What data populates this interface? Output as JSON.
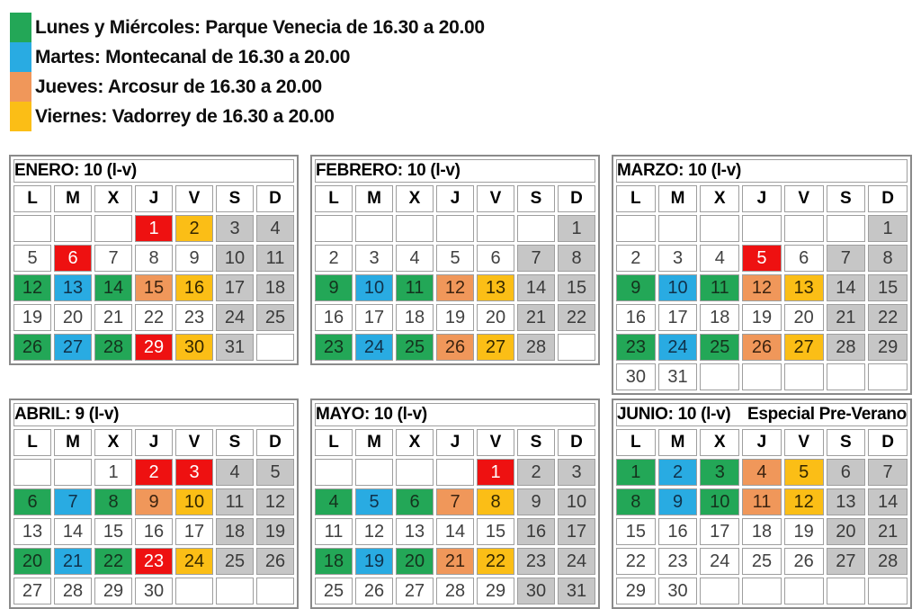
{
  "colors": {
    "green": "#23A757",
    "blue": "#29ABE2",
    "orange": "#F0975A",
    "yellow": "#FBBE16",
    "red": "#EE1111",
    "weekend_gray": "#C6C6C6"
  },
  "legend": {
    "items": [
      {
        "color_name": "green",
        "label": "Lunes y Miércoles: Parque Venecia de 16.30 a 20.00"
      },
      {
        "color_name": "blue",
        "label": "Martes: Montecanal de 16.30 a 20.00"
      },
      {
        "color_name": "orange",
        "label": "Jueves: Arcosur de 16.30 a 20.00"
      },
      {
        "color_name": "yellow",
        "label": "Viernes: Vadorrey de 16.30 a 20.00"
      }
    ]
  },
  "weekday_headers": [
    "L",
    "M",
    "X",
    "J",
    "V",
    "S",
    "D"
  ],
  "months": [
    {
      "id": "enero",
      "title": "ENERO: 10 (l-v)",
      "note": "",
      "weeks": [
        [
          {
            "d": "",
            "c": "empty"
          },
          {
            "d": "",
            "c": "empty"
          },
          {
            "d": "",
            "c": "empty"
          },
          {
            "d": 1,
            "c": "red"
          },
          {
            "d": 2,
            "c": "yellow"
          },
          {
            "d": 3,
            "c": "gray"
          },
          {
            "d": 4,
            "c": "gray"
          }
        ],
        [
          {
            "d": 5,
            "c": "white"
          },
          {
            "d": 6,
            "c": "red"
          },
          {
            "d": 7,
            "c": "white"
          },
          {
            "d": 8,
            "c": "white"
          },
          {
            "d": 9,
            "c": "white"
          },
          {
            "d": 10,
            "c": "gray"
          },
          {
            "d": 11,
            "c": "gray"
          }
        ],
        [
          {
            "d": 12,
            "c": "green"
          },
          {
            "d": 13,
            "c": "blue"
          },
          {
            "d": 14,
            "c": "green"
          },
          {
            "d": 15,
            "c": "orange"
          },
          {
            "d": 16,
            "c": "yellow"
          },
          {
            "d": 17,
            "c": "gray"
          },
          {
            "d": 18,
            "c": "gray"
          }
        ],
        [
          {
            "d": 19,
            "c": "white"
          },
          {
            "d": 20,
            "c": "white"
          },
          {
            "d": 21,
            "c": "white"
          },
          {
            "d": 22,
            "c": "white"
          },
          {
            "d": 23,
            "c": "white"
          },
          {
            "d": 24,
            "c": "gray"
          },
          {
            "d": 25,
            "c": "gray"
          }
        ],
        [
          {
            "d": 26,
            "c": "green"
          },
          {
            "d": 27,
            "c": "blue"
          },
          {
            "d": 28,
            "c": "green"
          },
          {
            "d": 29,
            "c": "red"
          },
          {
            "d": 30,
            "c": "yellow"
          },
          {
            "d": 31,
            "c": "gray"
          },
          {
            "d": "",
            "c": "empty"
          }
        ]
      ]
    },
    {
      "id": "febrero",
      "title": "FEBRERO: 10 (l-v)",
      "note": "",
      "weeks": [
        [
          {
            "d": "",
            "c": "empty"
          },
          {
            "d": "",
            "c": "empty"
          },
          {
            "d": "",
            "c": "empty"
          },
          {
            "d": "",
            "c": "empty"
          },
          {
            "d": "",
            "c": "empty"
          },
          {
            "d": "",
            "c": "empty"
          },
          {
            "d": 1,
            "c": "gray"
          }
        ],
        [
          {
            "d": 2,
            "c": "white"
          },
          {
            "d": 3,
            "c": "white"
          },
          {
            "d": 4,
            "c": "white"
          },
          {
            "d": 5,
            "c": "white"
          },
          {
            "d": 6,
            "c": "white"
          },
          {
            "d": 7,
            "c": "gray"
          },
          {
            "d": 8,
            "c": "gray"
          }
        ],
        [
          {
            "d": 9,
            "c": "green"
          },
          {
            "d": 10,
            "c": "blue"
          },
          {
            "d": 11,
            "c": "green"
          },
          {
            "d": 12,
            "c": "orange"
          },
          {
            "d": 13,
            "c": "yellow"
          },
          {
            "d": 14,
            "c": "gray"
          },
          {
            "d": 15,
            "c": "gray"
          }
        ],
        [
          {
            "d": 16,
            "c": "white"
          },
          {
            "d": 17,
            "c": "white"
          },
          {
            "d": 18,
            "c": "white"
          },
          {
            "d": 19,
            "c": "white"
          },
          {
            "d": 20,
            "c": "white"
          },
          {
            "d": 21,
            "c": "gray"
          },
          {
            "d": 22,
            "c": "gray"
          }
        ],
        [
          {
            "d": 23,
            "c": "green"
          },
          {
            "d": 24,
            "c": "blue"
          },
          {
            "d": 25,
            "c": "green"
          },
          {
            "d": 26,
            "c": "orange"
          },
          {
            "d": 27,
            "c": "yellow"
          },
          {
            "d": 28,
            "c": "gray"
          },
          {
            "d": "",
            "c": "empty"
          }
        ]
      ]
    },
    {
      "id": "marzo",
      "title": "MARZO: 10 (l-v)",
      "note": "",
      "weeks": [
        [
          {
            "d": "",
            "c": "empty"
          },
          {
            "d": "",
            "c": "empty"
          },
          {
            "d": "",
            "c": "empty"
          },
          {
            "d": "",
            "c": "empty"
          },
          {
            "d": "",
            "c": "empty"
          },
          {
            "d": "",
            "c": "empty"
          },
          {
            "d": 1,
            "c": "gray"
          }
        ],
        [
          {
            "d": 2,
            "c": "white"
          },
          {
            "d": 3,
            "c": "white"
          },
          {
            "d": 4,
            "c": "white"
          },
          {
            "d": 5,
            "c": "red"
          },
          {
            "d": 6,
            "c": "white"
          },
          {
            "d": 7,
            "c": "gray"
          },
          {
            "d": 8,
            "c": "gray"
          }
        ],
        [
          {
            "d": 9,
            "c": "green"
          },
          {
            "d": 10,
            "c": "blue"
          },
          {
            "d": 11,
            "c": "green"
          },
          {
            "d": 12,
            "c": "orange"
          },
          {
            "d": 13,
            "c": "yellow"
          },
          {
            "d": 14,
            "c": "gray"
          },
          {
            "d": 15,
            "c": "gray"
          }
        ],
        [
          {
            "d": 16,
            "c": "white"
          },
          {
            "d": 17,
            "c": "white"
          },
          {
            "d": 18,
            "c": "white"
          },
          {
            "d": 19,
            "c": "white"
          },
          {
            "d": 20,
            "c": "white"
          },
          {
            "d": 21,
            "c": "gray"
          },
          {
            "d": 22,
            "c": "gray"
          }
        ],
        [
          {
            "d": 23,
            "c": "green"
          },
          {
            "d": 24,
            "c": "blue"
          },
          {
            "d": 25,
            "c": "green"
          },
          {
            "d": 26,
            "c": "orange"
          },
          {
            "d": 27,
            "c": "yellow"
          },
          {
            "d": 28,
            "c": "gray"
          },
          {
            "d": 29,
            "c": "gray"
          }
        ],
        [
          {
            "d": 30,
            "c": "white"
          },
          {
            "d": 31,
            "c": "white"
          },
          {
            "d": "",
            "c": "empty"
          },
          {
            "d": "",
            "c": "empty"
          },
          {
            "d": "",
            "c": "empty"
          },
          {
            "d": "",
            "c": "empty"
          },
          {
            "d": "",
            "c": "empty"
          }
        ]
      ]
    },
    {
      "id": "abril",
      "title": "ABRIL: 9 (l-v)",
      "note": "",
      "weeks": [
        [
          {
            "d": "",
            "c": "empty"
          },
          {
            "d": "",
            "c": "empty"
          },
          {
            "d": 1,
            "c": "white"
          },
          {
            "d": 2,
            "c": "red"
          },
          {
            "d": 3,
            "c": "red"
          },
          {
            "d": 4,
            "c": "gray"
          },
          {
            "d": 5,
            "c": "gray"
          }
        ],
        [
          {
            "d": 6,
            "c": "green"
          },
          {
            "d": 7,
            "c": "blue"
          },
          {
            "d": 8,
            "c": "green"
          },
          {
            "d": 9,
            "c": "orange"
          },
          {
            "d": 10,
            "c": "yellow"
          },
          {
            "d": 11,
            "c": "gray"
          },
          {
            "d": 12,
            "c": "gray"
          }
        ],
        [
          {
            "d": 13,
            "c": "white"
          },
          {
            "d": 14,
            "c": "white"
          },
          {
            "d": 15,
            "c": "white"
          },
          {
            "d": 16,
            "c": "white"
          },
          {
            "d": 17,
            "c": "white"
          },
          {
            "d": 18,
            "c": "gray"
          },
          {
            "d": 19,
            "c": "gray"
          }
        ],
        [
          {
            "d": 20,
            "c": "green"
          },
          {
            "d": 21,
            "c": "blue"
          },
          {
            "d": 22,
            "c": "green"
          },
          {
            "d": 23,
            "c": "red"
          },
          {
            "d": 24,
            "c": "yellow"
          },
          {
            "d": 25,
            "c": "gray"
          },
          {
            "d": 26,
            "c": "gray"
          }
        ],
        [
          {
            "d": 27,
            "c": "white"
          },
          {
            "d": 28,
            "c": "white"
          },
          {
            "d": 29,
            "c": "white"
          },
          {
            "d": 30,
            "c": "white"
          },
          {
            "d": "",
            "c": "empty"
          },
          {
            "d": "",
            "c": "empty"
          },
          {
            "d": "",
            "c": "empty"
          }
        ]
      ]
    },
    {
      "id": "mayo",
      "title": "MAYO: 10 (l-v)",
      "note": "",
      "weeks": [
        [
          {
            "d": "",
            "c": "empty"
          },
          {
            "d": "",
            "c": "empty"
          },
          {
            "d": "",
            "c": "empty"
          },
          {
            "d": "",
            "c": "empty"
          },
          {
            "d": 1,
            "c": "red"
          },
          {
            "d": 2,
            "c": "gray"
          },
          {
            "d": 3,
            "c": "gray"
          }
        ],
        [
          {
            "d": 4,
            "c": "green"
          },
          {
            "d": 5,
            "c": "blue"
          },
          {
            "d": 6,
            "c": "green"
          },
          {
            "d": 7,
            "c": "orange"
          },
          {
            "d": 8,
            "c": "yellow"
          },
          {
            "d": 9,
            "c": "gray"
          },
          {
            "d": 10,
            "c": "gray"
          }
        ],
        [
          {
            "d": 11,
            "c": "white"
          },
          {
            "d": 12,
            "c": "white"
          },
          {
            "d": 13,
            "c": "white"
          },
          {
            "d": 14,
            "c": "white"
          },
          {
            "d": 15,
            "c": "white"
          },
          {
            "d": 16,
            "c": "gray"
          },
          {
            "d": 17,
            "c": "gray"
          }
        ],
        [
          {
            "d": 18,
            "c": "green"
          },
          {
            "d": 19,
            "c": "blue"
          },
          {
            "d": 20,
            "c": "green"
          },
          {
            "d": 21,
            "c": "orange"
          },
          {
            "d": 22,
            "c": "yellow"
          },
          {
            "d": 23,
            "c": "gray"
          },
          {
            "d": 24,
            "c": "gray"
          }
        ],
        [
          {
            "d": 25,
            "c": "white"
          },
          {
            "d": 26,
            "c": "white"
          },
          {
            "d": 27,
            "c": "white"
          },
          {
            "d": 28,
            "c": "white"
          },
          {
            "d": 29,
            "c": "white"
          },
          {
            "d": 30,
            "c": "gray"
          },
          {
            "d": 31,
            "c": "gray"
          }
        ]
      ]
    },
    {
      "id": "junio",
      "title": "JUNIO: 10 (l-v)",
      "note": "Especial Pre-Verano",
      "weeks": [
        [
          {
            "d": 1,
            "c": "green"
          },
          {
            "d": 2,
            "c": "blue"
          },
          {
            "d": 3,
            "c": "green"
          },
          {
            "d": 4,
            "c": "orange"
          },
          {
            "d": 5,
            "c": "yellow"
          },
          {
            "d": 6,
            "c": "gray"
          },
          {
            "d": 7,
            "c": "gray"
          }
        ],
        [
          {
            "d": 8,
            "c": "green"
          },
          {
            "d": 9,
            "c": "blue"
          },
          {
            "d": 10,
            "c": "green"
          },
          {
            "d": 11,
            "c": "orange"
          },
          {
            "d": 12,
            "c": "yellow"
          },
          {
            "d": 13,
            "c": "gray"
          },
          {
            "d": 14,
            "c": "gray"
          }
        ],
        [
          {
            "d": 15,
            "c": "white"
          },
          {
            "d": 16,
            "c": "white"
          },
          {
            "d": 17,
            "c": "white"
          },
          {
            "d": 18,
            "c": "white"
          },
          {
            "d": 19,
            "c": "white"
          },
          {
            "d": 20,
            "c": "gray"
          },
          {
            "d": 21,
            "c": "gray"
          }
        ],
        [
          {
            "d": 22,
            "c": "white"
          },
          {
            "d": 23,
            "c": "white"
          },
          {
            "d": 24,
            "c": "white"
          },
          {
            "d": 25,
            "c": "white"
          },
          {
            "d": 26,
            "c": "white"
          },
          {
            "d": 27,
            "c": "gray"
          },
          {
            "d": 28,
            "c": "gray"
          }
        ],
        [
          {
            "d": 29,
            "c": "white"
          },
          {
            "d": 30,
            "c": "white"
          },
          {
            "d": "",
            "c": "empty"
          },
          {
            "d": "",
            "c": "empty"
          },
          {
            "d": "",
            "c": "empty"
          },
          {
            "d": "",
            "c": "empty"
          },
          {
            "d": "",
            "c": "empty"
          }
        ]
      ]
    }
  ]
}
